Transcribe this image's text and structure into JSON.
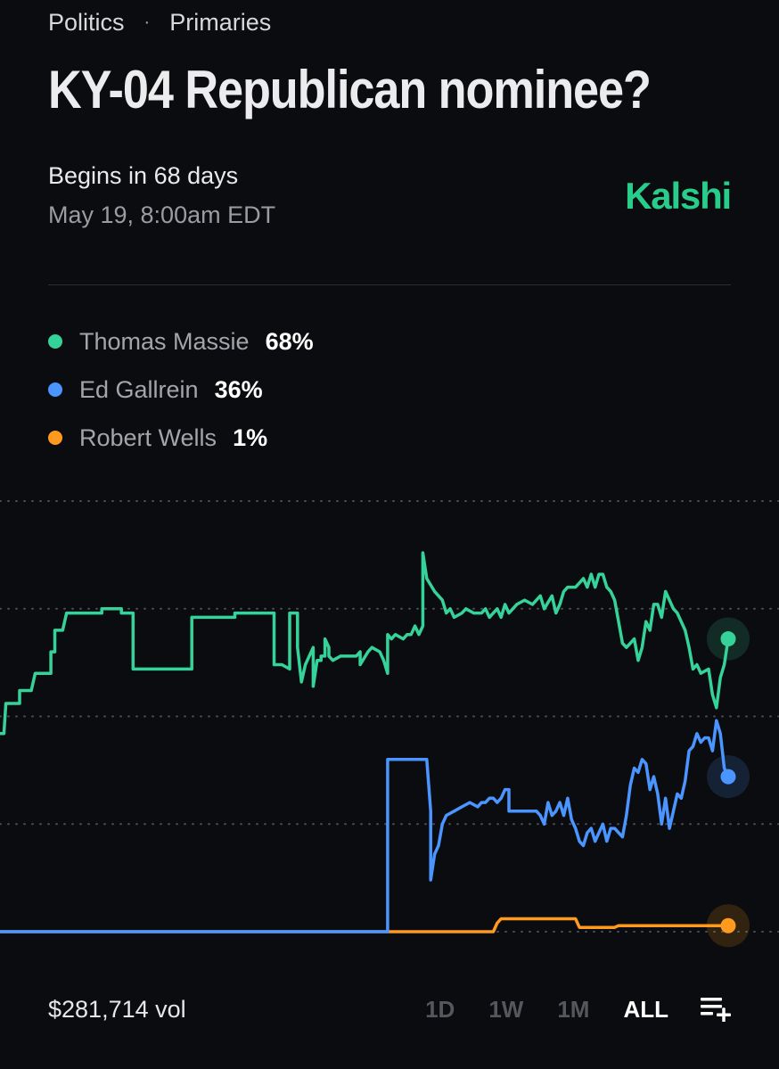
{
  "breadcrumb": {
    "category": "Politics",
    "separator": "·",
    "subcategory": "Primaries"
  },
  "title": "KY-04 Republican nominee?",
  "schedule": {
    "begins": "Begins in 68 days",
    "date": "May 19, 8:00am EDT"
  },
  "brand": {
    "name": "Kalshi",
    "color": "#28cc8b"
  },
  "legend": [
    {
      "name": "Thomas Massie",
      "value": "68%",
      "color": "#35d39a"
    },
    {
      "name": "Ed Gallrein",
      "value": "36%",
      "color": "#4a95ff"
    },
    {
      "name": "Robert Wells",
      "value": "1%",
      "color": "#ff9a1f"
    }
  ],
  "footer": {
    "volume": "$281,714 vol",
    "ranges": [
      "1D",
      "1W",
      "1M",
      "ALL"
    ],
    "active_range": "ALL",
    "add_icon": "playlist-add-icon"
  },
  "chart_data": {
    "type": "line",
    "title": "",
    "xlabel": "",
    "ylabel": "",
    "ylim": [
      0,
      100
    ],
    "gridlines": [
      0,
      25,
      50,
      75,
      100
    ],
    "grid": "dotted horizontal",
    "x_axis": "time (unlabeled, ALL range)",
    "series": [
      {
        "name": "Thomas Massie",
        "color": "#35d39a",
        "end_value": 68,
        "points": [
          [
            0,
            46
          ],
          [
            1,
            46
          ],
          [
            1.5,
            53
          ],
          [
            5,
            53
          ],
          [
            5,
            56
          ],
          [
            8,
            56
          ],
          [
            9,
            60
          ],
          [
            13,
            60
          ],
          [
            13,
            65
          ],
          [
            14,
            65
          ],
          [
            14,
            70
          ],
          [
            16,
            70
          ],
          [
            17,
            74
          ],
          [
            26,
            74
          ],
          [
            26,
            75
          ],
          [
            31,
            75
          ],
          [
            31,
            74
          ],
          [
            34,
            74
          ],
          [
            34,
            61
          ],
          [
            48,
            61
          ],
          [
            49,
            61
          ],
          [
            49,
            73
          ],
          [
            56,
            73
          ],
          [
            60,
            73
          ],
          [
            60,
            74
          ],
          [
            67,
            74
          ],
          [
            67,
            74
          ],
          [
            70,
            74
          ],
          [
            70,
            62
          ],
          [
            72,
            62
          ],
          [
            74,
            61
          ],
          [
            74,
            74
          ],
          [
            76,
            74
          ],
          [
            76,
            66
          ],
          [
            77,
            58
          ],
          [
            78,
            62
          ],
          [
            80,
            66
          ],
          [
            80,
            57
          ],
          [
            81,
            63
          ],
          [
            82,
            63
          ],
          [
            82,
            64
          ],
          [
            83,
            64
          ],
          [
            83,
            68
          ],
          [
            84,
            66
          ],
          [
            84,
            64
          ],
          [
            85,
            63
          ],
          [
            87,
            64
          ],
          [
            89,
            64
          ],
          [
            91,
            64
          ],
          [
            92,
            65
          ],
          [
            92,
            62
          ],
          [
            94,
            65
          ],
          [
            95,
            66
          ],
          [
            97,
            65
          ],
          [
            98,
            63
          ],
          [
            99,
            60
          ],
          [
            99,
            69
          ],
          [
            100,
            68
          ],
          [
            101,
            69
          ],
          [
            103,
            68
          ],
          [
            104,
            69
          ],
          [
            105,
            69
          ],
          [
            106,
            71
          ],
          [
            107,
            69
          ],
          [
            108,
            71
          ],
          [
            108,
            88
          ],
          [
            109,
            82
          ],
          [
            111,
            79
          ],
          [
            112,
            78
          ],
          [
            113,
            77
          ],
          [
            114,
            74
          ],
          [
            115,
            75
          ],
          [
            116,
            73
          ],
          [
            118,
            74
          ],
          [
            119,
            75
          ],
          [
            121,
            74
          ],
          [
            123,
            74
          ],
          [
            124,
            75
          ],
          [
            125,
            73
          ],
          [
            127,
            75
          ],
          [
            128,
            73
          ],
          [
            129,
            76
          ],
          [
            130,
            74
          ],
          [
            131,
            75
          ],
          [
            132,
            76
          ],
          [
            134,
            77
          ],
          [
            136,
            76
          ],
          [
            138,
            78
          ],
          [
            139,
            75
          ],
          [
            141,
            78
          ],
          [
            142,
            74
          ],
          [
            143,
            76
          ],
          [
            144,
            79
          ],
          [
            145,
            80
          ],
          [
            147,
            80
          ],
          [
            148,
            81
          ],
          [
            149,
            82
          ],
          [
            150,
            80
          ],
          [
            151,
            83
          ],
          [
            152,
            80
          ],
          [
            153,
            83
          ],
          [
            154,
            83
          ],
          [
            155,
            80
          ],
          [
            156,
            79
          ],
          [
            157,
            77
          ],
          [
            158,
            72
          ],
          [
            159,
            67
          ],
          [
            160,
            66
          ],
          [
            161,
            67
          ],
          [
            162,
            68
          ],
          [
            163,
            63
          ],
          [
            164,
            66
          ],
          [
            165,
            72
          ],
          [
            166,
            70
          ],
          [
            167,
            76
          ],
          [
            168,
            76
          ],
          [
            169,
            73
          ],
          [
            170,
            79
          ],
          [
            171,
            77
          ],
          [
            172,
            75
          ],
          [
            173,
            74
          ],
          [
            174,
            72
          ],
          [
            175,
            70
          ],
          [
            176,
            66
          ],
          [
            177,
            61
          ],
          [
            178,
            62
          ],
          [
            179,
            60
          ],
          [
            181,
            61
          ],
          [
            182,
            55
          ],
          [
            183,
            52
          ],
          [
            184,
            59
          ],
          [
            185,
            62
          ],
          [
            186,
            68
          ]
        ]
      },
      {
        "name": "Ed Gallrein",
        "color": "#4a95ff",
        "end_value": 36,
        "points": [
          [
            0,
            0
          ],
          [
            99,
            0
          ],
          [
            99,
            0
          ],
          [
            99,
            40
          ],
          [
            109,
            40
          ],
          [
            110,
            28
          ],
          [
            110,
            12
          ],
          [
            111,
            18
          ],
          [
            112,
            20
          ],
          [
            113,
            25
          ],
          [
            114,
            27
          ],
          [
            116,
            28
          ],
          [
            118,
            29
          ],
          [
            120,
            30
          ],
          [
            122,
            29
          ],
          [
            123,
            30
          ],
          [
            124,
            30
          ],
          [
            125,
            31
          ],
          [
            126,
            31
          ],
          [
            127,
            30
          ],
          [
            128,
            31
          ],
          [
            129,
            33
          ],
          [
            130,
            33
          ],
          [
            130,
            28
          ],
          [
            132,
            28
          ],
          [
            134,
            28
          ],
          [
            136,
            28
          ],
          [
            137,
            28
          ],
          [
            138,
            27
          ],
          [
            139,
            25
          ],
          [
            140,
            30
          ],
          [
            141,
            27
          ],
          [
            142,
            28
          ],
          [
            143,
            30
          ],
          [
            144,
            27
          ],
          [
            145,
            31
          ],
          [
            146,
            26
          ],
          [
            147,
            24
          ],
          [
            148,
            21
          ],
          [
            149,
            20
          ],
          [
            150,
            23
          ],
          [
            151,
            24
          ],
          [
            152,
            21
          ],
          [
            153,
            23
          ],
          [
            154,
            25
          ],
          [
            155,
            21
          ],
          [
            156,
            24
          ],
          [
            157,
            24
          ],
          [
            158,
            23
          ],
          [
            159,
            22
          ],
          [
            160,
            27
          ],
          [
            161,
            34
          ],
          [
            162,
            38
          ],
          [
            163,
            37
          ],
          [
            164,
            40
          ],
          [
            165,
            39
          ],
          [
            166,
            33
          ],
          [
            167,
            36
          ],
          [
            168,
            32
          ],
          [
            169,
            25
          ],
          [
            170,
            31
          ],
          [
            171,
            24
          ],
          [
            172,
            28
          ],
          [
            173,
            32
          ],
          [
            174,
            31
          ],
          [
            175,
            35
          ],
          [
            176,
            42
          ],
          [
            177,
            43
          ],
          [
            178,
            46
          ],
          [
            179,
            44
          ],
          [
            180,
            45
          ],
          [
            181,
            45
          ],
          [
            182,
            42
          ],
          [
            183,
            49
          ],
          [
            184,
            46
          ],
          [
            185,
            38
          ],
          [
            186,
            36
          ]
        ]
      },
      {
        "name": "Robert Wells",
        "color": "#ff9a1f",
        "end_value": 1,
        "points": [
          [
            0,
            0
          ],
          [
            126,
            0
          ],
          [
            127,
            2
          ],
          [
            128,
            3
          ],
          [
            147,
            3
          ],
          [
            148,
            1
          ],
          [
            157,
            1
          ],
          [
            158,
            1.4
          ],
          [
            186,
            1.4
          ]
        ]
      }
    ]
  }
}
